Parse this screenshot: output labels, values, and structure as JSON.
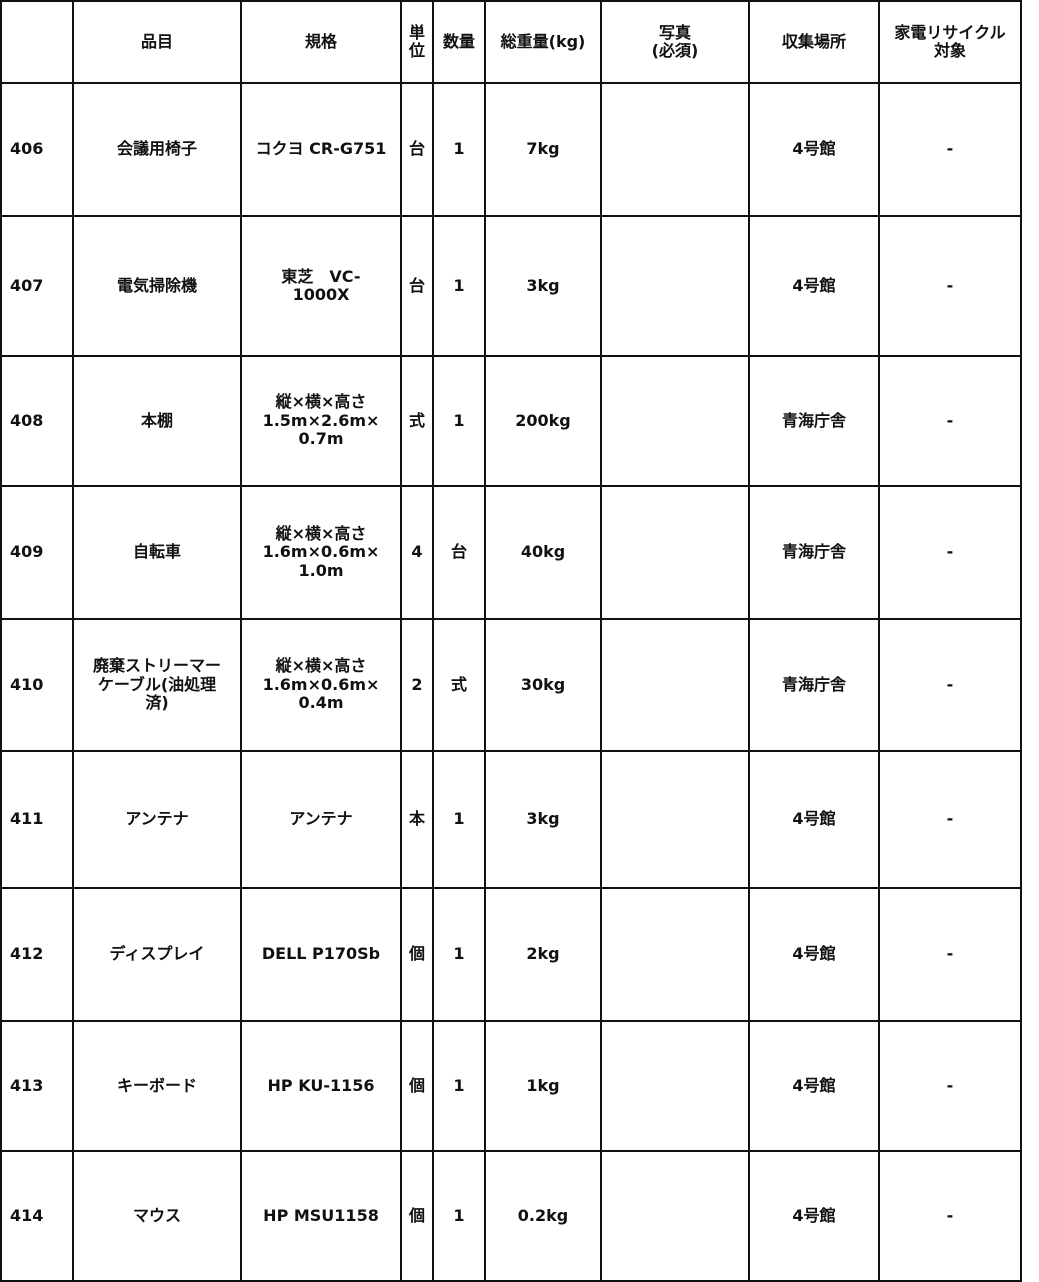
{
  "table": {
    "header": [
      "品目",
      "規格",
      "単\n位",
      "数量",
      "総重量(kg)",
      "写真\n(必須)",
      "収集場所",
      "家電リサイクル\n対象"
    ],
    "rows": [
      [
        "406",
        "会議用椅子",
        "コクヨ CR-G751",
        "台",
        "1",
        "7kg",
        "4号館",
        "-"
      ],
      [
        "407",
        "電気掃除機",
        "東芝　VC-\n1000X",
        "台",
        "1",
        "3kg",
        "4号館",
        "-"
      ],
      [
        "408",
        "本棚",
        "縦×横×高さ\n1.5m×2.6m×\n0.7m",
        "式",
        "1",
        "200kg",
        "青海庁舎",
        "-"
      ],
      [
        "409",
        "自転車",
        "縦×横×高さ\n1.6m×0.6m×\n1.0m",
        "4",
        "台",
        "40kg",
        "青海庁舎",
        "-"
      ],
      [
        "410",
        "廃棄ストリーマー\nケーブル(油処理\n済)",
        "縦×横×高さ\n1.6m×0.6m×\n0.4m",
        "2",
        "式",
        "30kg",
        "青海庁舎",
        "-"
      ],
      [
        "411",
        "アンテナ",
        "アンテナ",
        "本",
        "1",
        "3kg",
        "4号館",
        "-"
      ],
      [
        "412",
        "ディスプレイ",
        "DELL P170Sb",
        "個",
        "1",
        "2kg",
        "4号館",
        "-"
      ],
      [
        "413",
        "キーボード",
        "HP KU-1156",
        "個",
        "1",
        "1kg",
        "4号館",
        "-"
      ],
      [
        "414",
        "マウス",
        "HP MSU1158",
        "個",
        "1",
        "0.2kg",
        "4号館",
        "-"
      ]
    ]
  }
}
